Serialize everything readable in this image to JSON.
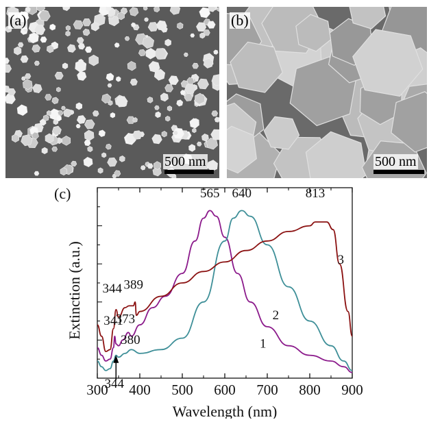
{
  "panels": {
    "a": {
      "label": "(a)",
      "scale_text": "500 nm"
    },
    "b": {
      "label": "(b)",
      "scale_text": "500 nm"
    },
    "c": {
      "label": "(c)"
    }
  },
  "chart_data": {
    "type": "line",
    "xlabel": "Wavelength (nm)",
    "ylabel": "Extinction (a.u.)",
    "xlim": [
      300,
      900
    ],
    "xticks": [
      300,
      400,
      500,
      600,
      700,
      800,
      900
    ],
    "ylim": [
      0,
      1
    ],
    "grid": false,
    "colors": {
      "1": "#8b1a8b",
      "2": "#3e8f98",
      "3": "#8b1212"
    },
    "series": [
      {
        "name": "1",
        "x": [
          300,
          310,
          320,
          330,
          338,
          341,
          344,
          350,
          360,
          373,
          380,
          400,
          430,
          460,
          500,
          530,
          550,
          565,
          580,
          600,
          630,
          660,
          700,
          750,
          800,
          850,
          880,
          900
        ],
        "y": [
          0.16,
          0.12,
          0.09,
          0.1,
          0.16,
          0.22,
          0.18,
          0.17,
          0.2,
          0.24,
          0.22,
          0.28,
          0.37,
          0.43,
          0.55,
          0.72,
          0.84,
          0.88,
          0.85,
          0.74,
          0.55,
          0.4,
          0.27,
          0.17,
          0.12,
          0.09,
          0.06,
          0.03
        ]
      },
      {
        "name": "2",
        "x": [
          300,
          310,
          320,
          330,
          338,
          344,
          350,
          365,
          380,
          400,
          450,
          500,
          550,
          600,
          620,
          640,
          660,
          700,
          750,
          800,
          850,
          880,
          900
        ],
        "y": [
          0.09,
          0.06,
          0.04,
          0.05,
          0.09,
          0.12,
          0.11,
          0.13,
          0.15,
          0.13,
          0.15,
          0.21,
          0.4,
          0.72,
          0.84,
          0.88,
          0.85,
          0.7,
          0.48,
          0.3,
          0.17,
          0.09,
          0.04
        ]
      },
      {
        "name": "3",
        "x": [
          300,
          310,
          320,
          330,
          338,
          344,
          350,
          365,
          375,
          385,
          389,
          392,
          400,
          450,
          500,
          550,
          600,
          650,
          700,
          750,
          800,
          813,
          840,
          855,
          870,
          890,
          900
        ],
        "y": [
          0.28,
          0.22,
          0.14,
          0.15,
          0.26,
          0.36,
          0.32,
          0.37,
          0.38,
          0.38,
          0.4,
          0.33,
          0.35,
          0.43,
          0.5,
          0.56,
          0.61,
          0.67,
          0.72,
          0.77,
          0.8,
          0.82,
          0.82,
          0.78,
          0.6,
          0.35,
          0.22
        ]
      }
    ],
    "annotations": [
      {
        "text": "565",
        "x": 565,
        "y": 0.95
      },
      {
        "text": "640",
        "x": 640,
        "y": 0.95
      },
      {
        "text": "813",
        "x": 813,
        "y": 0.95
      },
      {
        "text": "344",
        "x": 335,
        "y": 0.45
      },
      {
        "text": "389",
        "x": 385,
        "y": 0.47
      },
      {
        "text": "341",
        "x": 338,
        "y": 0.28
      },
      {
        "text": "373",
        "x": 366,
        "y": 0.29
      },
      {
        "text": "380",
        "x": 378,
        "y": 0.18
      },
      {
        "text": "344",
        "x": 340,
        "y": -0.05
      },
      {
        "text": "1",
        "x": 690,
        "y": 0.16
      },
      {
        "text": "2",
        "x": 720,
        "y": 0.31
      },
      {
        "text": "3",
        "x": 873,
        "y": 0.6
      }
    ]
  }
}
